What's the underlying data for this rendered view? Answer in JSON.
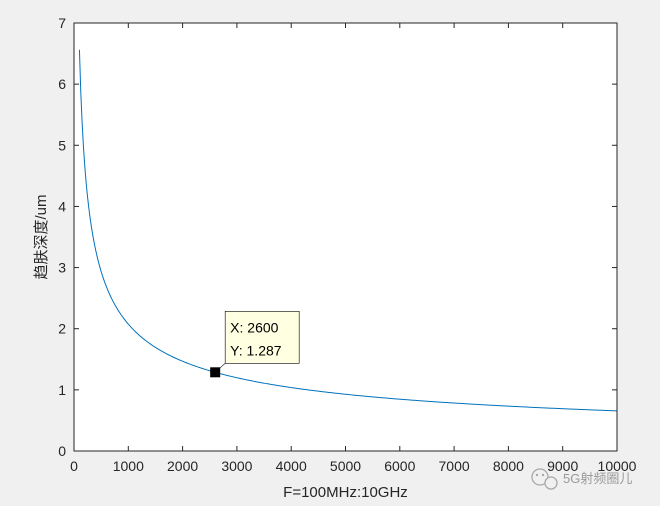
{
  "chart_data": {
    "type": "line",
    "title": "",
    "xlabel": "F=100MHz:10GHz",
    "ylabel": "趋肤深度/um",
    "xlim": [
      0,
      10000
    ],
    "ylim": [
      0,
      7
    ],
    "xticks": [
      0,
      1000,
      2000,
      3000,
      4000,
      5000,
      6000,
      7000,
      8000,
      9000,
      10000
    ],
    "yticks": [
      0,
      1,
      2,
      3,
      4,
      5,
      6,
      7
    ],
    "grid": false,
    "legend": "none",
    "series": [
      {
        "color": "#0072bd",
        "formula": "y = 65.63 / sqrt(x)",
        "x": [
          100,
          150,
          200,
          300,
          400,
          500,
          600,
          800,
          1000,
          1200,
          1500,
          2000,
          2600,
          3000,
          4000,
          5000,
          6000,
          7000,
          8000,
          9000,
          10000
        ],
        "y": [
          6.563,
          5.359,
          4.641,
          3.789,
          3.282,
          2.935,
          2.679,
          2.32,
          2.075,
          1.895,
          1.695,
          1.468,
          1.287,
          1.198,
          1.038,
          0.928,
          0.847,
          0.784,
          0.734,
          0.692,
          0.656
        ]
      }
    ],
    "datatip": {
      "x": 2600,
      "y": 1.287,
      "x_text": "X: 2600",
      "y_text": "Y: 1.287"
    }
  },
  "watermark": {
    "text": "5G射频圈儿"
  }
}
